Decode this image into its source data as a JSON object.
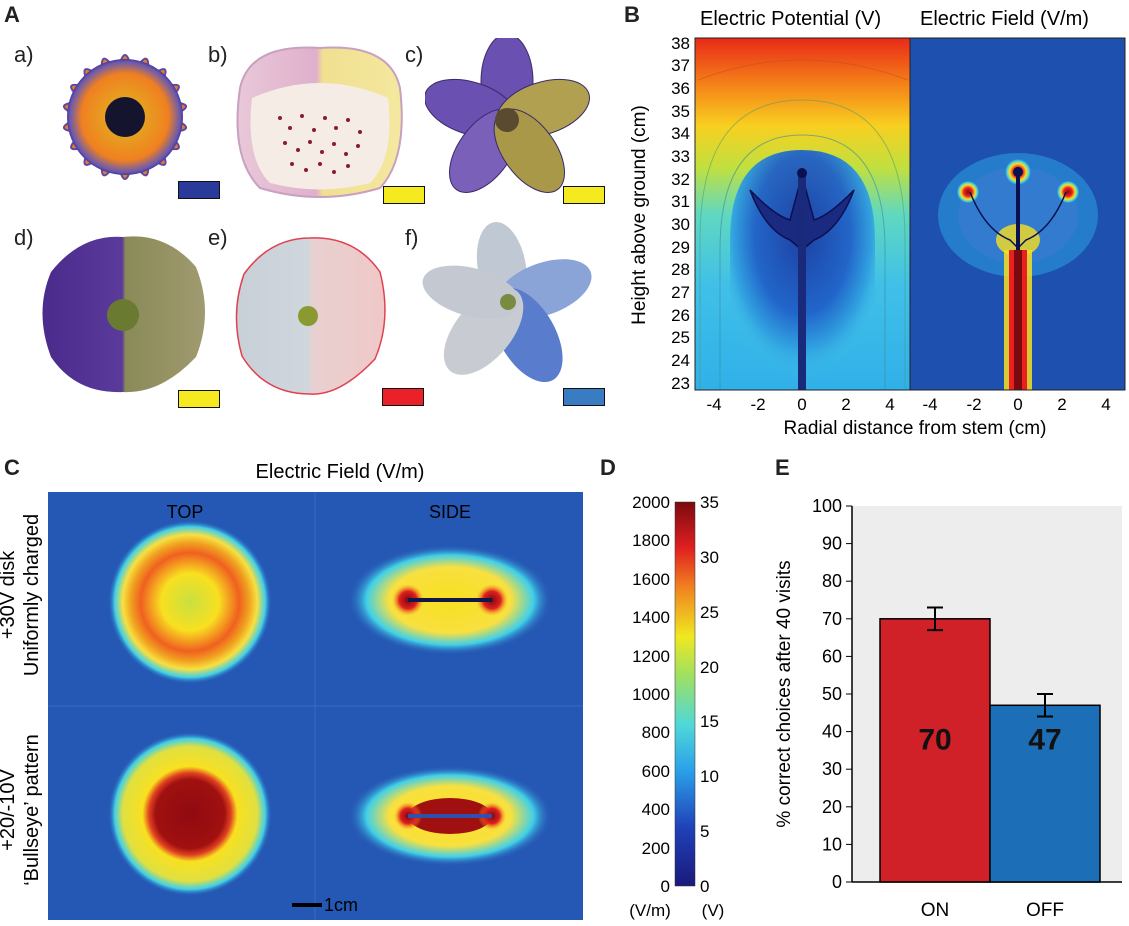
{
  "panel_letters": {
    "A": "A",
    "B": "B",
    "C": "C",
    "D": "D",
    "E": "E"
  },
  "panelA": {
    "flowers": [
      {
        "label": "a)",
        "swatch": "#2a3a9a"
      },
      {
        "label": "b)",
        "swatch": "#f4ea1f"
      },
      {
        "label": "c)",
        "swatch": "#f4ea1f"
      },
      {
        "label": "d)",
        "swatch": "#f4ea1f"
      },
      {
        "label": "e)",
        "swatch": "#ea2227"
      },
      {
        "label": "f)",
        "swatch": "#3a7cc4"
      }
    ]
  },
  "panelB": {
    "title_left": "Electric Potential (V)",
    "title_right": "Electric Field (V/m)",
    "ylabel": "Height above ground (cm)",
    "xlabel": "Radial distance from stem (cm)",
    "yticks": [
      "38",
      "37",
      "36",
      "35",
      "34",
      "33",
      "32",
      "31",
      "30",
      "29",
      "28",
      "27",
      "26",
      "25",
      "24",
      "23"
    ],
    "xticks_left": [
      "-4",
      "-2",
      "0",
      "2",
      "4"
    ],
    "xticks_right": [
      "-4",
      "-2",
      "0",
      "2",
      "4"
    ]
  },
  "panelC": {
    "title": "Electric Field (V/m)",
    "col_top": "TOP",
    "col_side": "SIDE",
    "row1_line1": "+30V disk",
    "row1_line2": "Uniformly charged",
    "row2_line1": "+20/-10V",
    "row2_line2": "‘Bullseye’ pattern",
    "scalebar": "1cm"
  },
  "panelD": {
    "left_ticks": [
      "2000",
      "1800",
      "1600",
      "1400",
      "1200",
      "1000",
      "800",
      "600",
      "400",
      "200",
      "0"
    ],
    "right_ticks": [
      "35",
      "30",
      "25",
      "20",
      "15",
      "10",
      "5",
      "0"
    ],
    "left_unit": "(V/m)",
    "right_unit": "(V)"
  },
  "chart_data": {
    "type": "bar",
    "categories": [
      "ON",
      "OFF"
    ],
    "values": [
      70,
      47
    ],
    "errors": [
      3,
      3
    ],
    "colors": [
      "#d02028",
      "#1c6eb6"
    ],
    "bar_labels": [
      "70",
      "47"
    ],
    "title": "",
    "xlabel": "",
    "ylabel": "% correct choices after 40 visits",
    "ylim": [
      0,
      100
    ],
    "yticks": [
      "100",
      "90",
      "80",
      "70",
      "60",
      "50",
      "40",
      "30",
      "20",
      "10",
      "0"
    ]
  }
}
